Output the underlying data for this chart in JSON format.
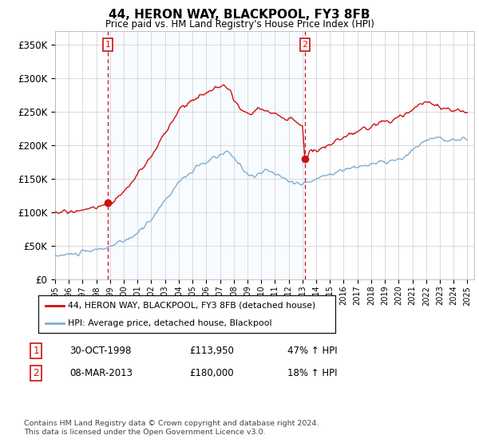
{
  "title": "44, HERON WAY, BLACKPOOL, FY3 8FB",
  "subtitle": "Price paid vs. HM Land Registry's House Price Index (HPI)",
  "ylabel_ticks": [
    "£0",
    "£50K",
    "£100K",
    "£150K",
    "£200K",
    "£250K",
    "£300K",
    "£350K"
  ],
  "ytick_values": [
    0,
    50000,
    100000,
    150000,
    200000,
    250000,
    300000,
    350000
  ],
  "ylim": [
    0,
    370000
  ],
  "xlim_start": 1995.0,
  "xlim_end": 2025.5,
  "hpi_color": "#7dadd4",
  "price_color": "#cc1111",
  "dashed_color": "#cc1111",
  "shade_color": "#ddeeff",
  "marker1_x": 1998.83,
  "marker1_y": 113950,
  "marker2_x": 2013.18,
  "marker2_y": 180000,
  "legend_label1": "44, HERON WAY, BLACKPOOL, FY3 8FB (detached house)",
  "legend_label2": "HPI: Average price, detached house, Blackpool",
  "table_row1_num": "1",
  "table_row1_date": "30-OCT-1998",
  "table_row1_price": "£113,950",
  "table_row1_hpi": "47% ↑ HPI",
  "table_row2_num": "2",
  "table_row2_date": "08-MAR-2013",
  "table_row2_price": "£180,000",
  "table_row2_hpi": "18% ↑ HPI",
  "footer": "Contains HM Land Registry data © Crown copyright and database right 2024.\nThis data is licensed under the Open Government Licence v3.0.",
  "bg_color": "#ffffff",
  "grid_color": "#cccccc",
  "xtick_years": [
    1995,
    1996,
    1997,
    1998,
    1999,
    2000,
    2001,
    2002,
    2003,
    2004,
    2005,
    2006,
    2007,
    2008,
    2009,
    2010,
    2011,
    2012,
    2013,
    2014,
    2015,
    2016,
    2017,
    2018,
    2019,
    2020,
    2021,
    2022,
    2023,
    2024,
    2025
  ]
}
